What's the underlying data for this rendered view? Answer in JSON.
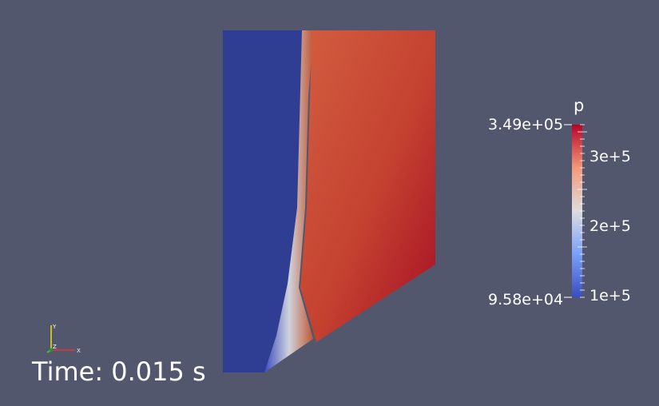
{
  "scene": {
    "background": "#52576e",
    "colormap": [
      "#3b4cc0",
      "#dddddd",
      "#b40426"
    ]
  },
  "legend": {
    "title": "p",
    "range_max": "3.49e+05",
    "range_min": "9.58e+04",
    "ticks": [
      {
        "label": "3e+5",
        "value": 300000
      },
      {
        "label": "2e+5",
        "value": 200000
      },
      {
        "label": "1e+5",
        "value": 100000
      }
    ]
  },
  "time_annotation": "Time: 0.015 s",
  "axes": {
    "x": "X",
    "y": "Y",
    "z": "Z"
  }
}
